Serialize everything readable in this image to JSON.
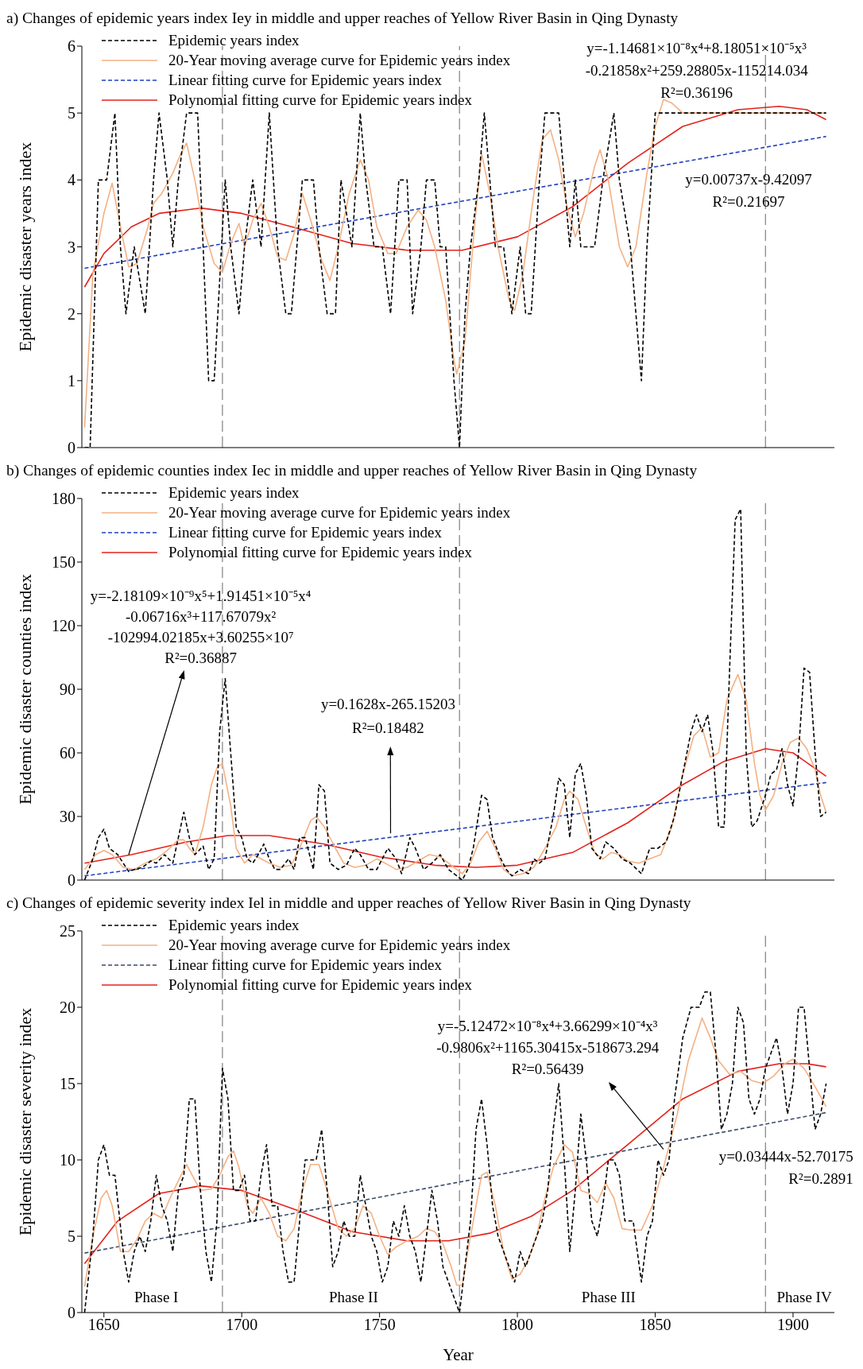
{
  "chart_data": [
    {
      "type": "line",
      "title": "a) Changes of epidemic years index Iey in middle and upper reaches of Yellow River Basin in Qing Dynasty",
      "ylabel": "Epidemic disaster years index",
      "xlim": [
        1642,
        1915
      ],
      "xticks": [
        1650,
        1700,
        1750,
        1800,
        1850,
        1900
      ],
      "ylim": [
        0,
        6
      ],
      "yticks": [
        0,
        1,
        2,
        3,
        4,
        5,
        6
      ],
      "tick_labels": "y",
      "legend": "top left",
      "ref_lines": [
        {
          "axis": "x",
          "value": 1693,
          "color": "#808080",
          "line_style": "dashed"
        },
        {
          "axis": "x",
          "value": 1779,
          "color": "#808080",
          "line_style": "dashed"
        },
        {
          "axis": "x",
          "value": 1890,
          "color": "#808080",
          "line_style": "dashed"
        }
      ],
      "annotations": [
        "y=-1.14681×10⁻⁸x⁴+8.18051×10⁻⁵x³\n-0.21858x²+259.28805x-115214.034\nR²=0.36196",
        "y=0.00737x-9.42097\nR²=0.21697"
      ],
      "series": [
        {
          "name": "Epidemic years index",
          "type": "line",
          "color": "#000000",
          "line_style": "dashed",
          "x": [
            1643,
            1645,
            1648,
            1651,
            1654,
            1656,
            1658,
            1661,
            1665,
            1668,
            1670,
            1673,
            1675,
            1677,
            1680,
            1684,
            1686,
            1688,
            1690,
            1694,
            1696,
            1699,
            1701,
            1704,
            1707,
            1710,
            1713,
            1716,
            1718,
            1722,
            1726,
            1728,
            1731,
            1734,
            1736,
            1740,
            1743,
            1745,
            1748,
            1751,
            1754,
            1757,
            1760,
            1762,
            1765,
            1767,
            1770,
            1772,
            1774,
            1777,
            1779,
            1781,
            1783,
            1786,
            1788,
            1790,
            1792,
            1795,
            1798,
            1801,
            1803,
            1805,
            1808,
            1810,
            1815,
            1819,
            1821,
            1823,
            1828,
            1831,
            1835,
            1837,
            1841,
            1845,
            1847,
            1850,
            1912
          ],
          "values": [
            0,
            0,
            4,
            4,
            5,
            3,
            2,
            3,
            2,
            4,
            5,
            4,
            3,
            4,
            5,
            5,
            3,
            1,
            1,
            4,
            3,
            2,
            3,
            4,
            3,
            5,
            3,
            2,
            2,
            4,
            4,
            3,
            2,
            2,
            4,
            3,
            5,
            4,
            3,
            3,
            2,
            4,
            4,
            2,
            3,
            4,
            4,
            3,
            3,
            1,
            0,
            2,
            3,
            4,
            5,
            4,
            3,
            3,
            2,
            3,
            2,
            2,
            4,
            5,
            5,
            3,
            4,
            3,
            3,
            4,
            5,
            4,
            3,
            1,
            3,
            5,
            5
          ]
        },
        {
          "name": "20-Year moving average curve for Epidemic years index",
          "type": "line",
          "color": "#f4b183",
          "line_style": "solid",
          "x": [
            1643,
            1646,
            1650,
            1653,
            1656,
            1659,
            1662,
            1666,
            1668,
            1671,
            1675,
            1678,
            1680,
            1683,
            1686,
            1690,
            1693,
            1696,
            1699,
            1701,
            1704,
            1707,
            1710,
            1713,
            1716,
            1719,
            1722,
            1725,
            1729,
            1732,
            1735,
            1739,
            1743,
            1746,
            1749,
            1753,
            1756,
            1760,
            1764,
            1767,
            1770,
            1774,
            1777,
            1778,
            1781,
            1784,
            1787,
            1790,
            1793,
            1797,
            1799,
            1802,
            1806,
            1809,
            1812,
            1815,
            1818,
            1821,
            1824,
            1828,
            1830,
            1833,
            1837,
            1840,
            1843,
            1847,
            1850,
            1853,
            1856,
            1860,
            1912
          ],
          "values": [
            0.3,
            2.6,
            3.5,
            3.95,
            3.3,
            2.7,
            2.75,
            3.3,
            3.65,
            3.8,
            4.1,
            4.4,
            4.55,
            4.0,
            3.3,
            2.75,
            2.62,
            3.05,
            3.35,
            3.0,
            3.4,
            3.65,
            3.3,
            2.85,
            2.8,
            3.2,
            3.8,
            3.4,
            2.8,
            2.5,
            3.0,
            3.8,
            4.3,
            4.0,
            3.3,
            2.9,
            2.9,
            3.3,
            3.55,
            3.4,
            3.0,
            2.2,
            1.3,
            1.1,
            1.6,
            3.1,
            4.4,
            3.8,
            3.0,
            2.2,
            2.05,
            2.6,
            3.8,
            4.6,
            4.75,
            4.3,
            3.6,
            3.15,
            3.5,
            4.2,
            4.45,
            4.0,
            3.0,
            2.7,
            3.0,
            4.1,
            4.8,
            5.2,
            5.15,
            5.0,
            5.0
          ]
        },
        {
          "name": "Linear fitting curve for Epidemic years index",
          "type": "line",
          "color": "#1f3fbf",
          "line_style": "dashed",
          "x": [
            1643,
            1912
          ],
          "values": [
            2.68,
            4.65
          ]
        },
        {
          "name": "Polynomial fitting curve for Epidemic years index",
          "type": "line",
          "color": "#e3231c",
          "line_style": "solid",
          "x": [
            1643,
            1650,
            1660,
            1670,
            1685,
            1700,
            1720,
            1740,
            1760,
            1780,
            1800,
            1820,
            1840,
            1860,
            1880,
            1895,
            1905,
            1912
          ],
          "values": [
            2.4,
            2.9,
            3.3,
            3.5,
            3.58,
            3.5,
            3.28,
            3.05,
            2.95,
            2.95,
            3.15,
            3.6,
            4.25,
            4.8,
            5.05,
            5.1,
            5.05,
            4.9
          ]
        }
      ]
    },
    {
      "type": "line",
      "title": "b) Changes of epidemic counties index Iec in middle and upper reaches of Yellow River Basin in Qing Dynasty",
      "ylabel": "Epidemic disaster counties index",
      "xlim": [
        1642,
        1915
      ],
      "xticks": [
        1650,
        1700,
        1750,
        1800,
        1850,
        1900
      ],
      "ylim": [
        0,
        180
      ],
      "yticks": [
        0,
        30,
        60,
        90,
        120,
        150,
        180
      ],
      "tick_labels": "y",
      "legend": "top left",
      "ref_lines": [
        {
          "axis": "x",
          "value": 1693,
          "color": "#808080",
          "line_style": "dashed"
        },
        {
          "axis": "x",
          "value": 1779,
          "color": "#808080",
          "line_style": "dashed"
        },
        {
          "axis": "x",
          "value": 1890,
          "color": "#808080",
          "line_style": "dashed"
        }
      ],
      "annotations": [
        {
          "text": "y=-2.18109×10⁻⁹x⁵+1.91451×10⁻⁵x⁴\n-0.06716x³+117.67079x²\n-102994.02185x+3.60255×10⁷\nR²=0.36887",
          "x": 1659,
          "y": 12
        },
        {
          "text": "y=0.1628x-265.15203\nR²=0.18482",
          "x": 1754,
          "y": 22
        }
      ],
      "series": [
        {
          "name": "Epidemic years index",
          "type": "line",
          "color": "#000000",
          "line_style": "dashed",
          "x": [
            1643,
            1646,
            1648,
            1650,
            1652,
            1655,
            1657,
            1659,
            1661,
            1664,
            1667,
            1669,
            1672,
            1675,
            1677,
            1679,
            1681,
            1683,
            1686,
            1688,
            1690,
            1692,
            1694,
            1696,
            1698,
            1700,
            1702,
            1704,
            1706,
            1708,
            1710,
            1712,
            1714,
            1717,
            1719,
            1721,
            1723,
            1726,
            1728,
            1730,
            1732,
            1735,
            1738,
            1741,
            1743,
            1746,
            1749,
            1753,
            1756,
            1758,
            1761,
            1763,
            1766,
            1769,
            1772,
            1775,
            1778,
            1780,
            1782,
            1784,
            1787,
            1789,
            1791,
            1794,
            1796,
            1798,
            1801,
            1804,
            1806,
            1808,
            1810,
            1813,
            1815,
            1817,
            1819,
            1821,
            1823,
            1825,
            1827,
            1830,
            1832,
            1835,
            1838,
            1841,
            1845,
            1848,
            1851,
            1854,
            1857,
            1860,
            1863,
            1865,
            1867,
            1869,
            1871,
            1873,
            1875,
            1877,
            1879,
            1881,
            1883,
            1885,
            1887,
            1890,
            1892,
            1894,
            1896,
            1898,
            1900,
            1902,
            1904,
            1906,
            1908,
            1910,
            1912
          ],
          "values": [
            0,
            10,
            20,
            24,
            15,
            12,
            8,
            4,
            5,
            6,
            9,
            8,
            12,
            8,
            20,
            32,
            20,
            12,
            16,
            5,
            10,
            70,
            95,
            60,
            25,
            20,
            10,
            8,
            12,
            17,
            10,
            5,
            5,
            10,
            5,
            20,
            20,
            5,
            45,
            42,
            8,
            5,
            7,
            15,
            12,
            5,
            5,
            15,
            10,
            3,
            20,
            15,
            5,
            8,
            12,
            5,
            2,
            0,
            5,
            15,
            40,
            38,
            20,
            10,
            5,
            2,
            5,
            3,
            10,
            8,
            10,
            30,
            48,
            45,
            20,
            50,
            55,
            40,
            15,
            10,
            18,
            15,
            10,
            8,
            3,
            15,
            15,
            18,
            30,
            50,
            70,
            78,
            70,
            78,
            60,
            25,
            25,
            100,
            170,
            175,
            60,
            25,
            28,
            40,
            50,
            52,
            62,
            45,
            35,
            60,
            100,
            98,
            60,
            30,
            32
          ]
        },
        {
          "name": "20-Year moving average curve for Epidemic years index",
          "type": "line",
          "color": "#f4b183",
          "line_style": "solid",
          "x": [
            1643,
            1647,
            1650,
            1653,
            1657,
            1661,
            1665,
            1669,
            1673,
            1677,
            1679,
            1681,
            1683,
            1686,
            1689,
            1691,
            1693,
            1696,
            1698,
            1701,
            1704,
            1707,
            1710,
            1714,
            1718,
            1721,
            1725,
            1727,
            1730,
            1734,
            1737,
            1741,
            1745,
            1749,
            1752,
            1756,
            1760,
            1764,
            1768,
            1772,
            1775,
            1778,
            1780,
            1783,
            1786,
            1789,
            1792,
            1795,
            1798,
            1802,
            1806,
            1810,
            1814,
            1817,
            1819,
            1822,
            1825,
            1828,
            1831,
            1834,
            1837,
            1840,
            1844,
            1848,
            1852,
            1856,
            1860,
            1864,
            1867,
            1870,
            1873,
            1876,
            1880,
            1883,
            1886,
            1888,
            1890,
            1893,
            1896,
            1899,
            1902,
            1905,
            1908,
            1910,
            1912
          ],
          "values": [
            5,
            12,
            14,
            12,
            6,
            5,
            8,
            10,
            14,
            19,
            19,
            15,
            12,
            25,
            45,
            53,
            55,
            35,
            15,
            8,
            12,
            10,
            8,
            6,
            7,
            15,
            28,
            30,
            25,
            15,
            8,
            6,
            7,
            10,
            8,
            5,
            6,
            9,
            12,
            11,
            8,
            5,
            3,
            8,
            18,
            23,
            15,
            5,
            2,
            3,
            6,
            15,
            25,
            38,
            42,
            38,
            25,
            13,
            10,
            13,
            12,
            9,
            8,
            10,
            12,
            25,
            50,
            68,
            72,
            58,
            60,
            85,
            97,
            85,
            55,
            40,
            33,
            40,
            55,
            65,
            67,
            62,
            52,
            40,
            32
          ]
        },
        {
          "name": "Linear fitting curve for Epidemic years index",
          "type": "line",
          "color": "#1f3fbf",
          "line_style": "dashed",
          "x": [
            1643,
            1912
          ],
          "values": [
            2,
            46
          ]
        },
        {
          "name": "Polynomial fitting curve for Epidemic years index",
          "type": "line",
          "color": "#e3231c",
          "line_style": "solid",
          "x": [
            1643,
            1660,
            1680,
            1695,
            1710,
            1730,
            1750,
            1770,
            1785,
            1800,
            1820,
            1840,
            1860,
            1875,
            1890,
            1900,
            1912
          ],
          "values": [
            8,
            12,
            18,
            21,
            21,
            17,
            11,
            7,
            6,
            7,
            13,
            27,
            45,
            56,
            62,
            60,
            49
          ]
        }
      ]
    },
    {
      "type": "line",
      "title": "c) Changes of epidemic severity index Iel in middle and upper reaches of Yellow River Basin in Qing Dynasty",
      "xlabel": "Year",
      "ylabel": "Epidemic disaster severity index",
      "xlim": [
        1642,
        1915
      ],
      "xticks": [
        1650,
        1700,
        1750,
        1800,
        1850,
        1900
      ],
      "ylim": [
        0,
        25
      ],
      "yticks": [
        0,
        5,
        10,
        15,
        20,
        25
      ],
      "legend": "top left",
      "ref_lines": [
        {
          "axis": "x",
          "value": 1693,
          "color": "#808080",
          "line_style": "dashed"
        },
        {
          "axis": "x",
          "value": 1779,
          "color": "#808080",
          "line_style": "dashed"
        },
        {
          "axis": "x",
          "value": 1890,
          "color": "#808080",
          "line_style": "dashed"
        }
      ],
      "annotations": [
        {
          "text": "y=-5.12472×10⁻⁸x⁴+3.66299×10⁻⁴x³\n-0.9806x²+1165.30415x-518673.294\nR²=0.56439",
          "x": 1853,
          "y": 10.7
        },
        "y=0.03444x-52.70175\nR²=0.2891",
        "Phase I",
        "Phase II",
        "Phase III",
        "Phase IV"
      ],
      "series": [
        {
          "name": "Epidemic years index",
          "type": "line",
          "color": "#000000",
          "line_style": "dashed",
          "x": [
            1643,
            1646,
            1648,
            1650,
            1652,
            1654,
            1657,
            1659,
            1661,
            1663,
            1665,
            1667,
            1669,
            1671,
            1673,
            1675,
            1677,
            1679,
            1681,
            1683,
            1685,
            1687,
            1689,
            1691,
            1693,
            1695,
            1697,
            1699,
            1701,
            1703,
            1705,
            1707,
            1709,
            1711,
            1713,
            1715,
            1717,
            1719,
            1721,
            1723,
            1725,
            1727,
            1729,
            1731,
            1733,
            1735,
            1737,
            1739,
            1741,
            1743,
            1745,
            1747,
            1749,
            1751,
            1753,
            1755,
            1757,
            1759,
            1761,
            1763,
            1765,
            1767,
            1769,
            1771,
            1773,
            1775,
            1777,
            1779,
            1781,
            1783,
            1785,
            1787,
            1789,
            1791,
            1793,
            1795,
            1797,
            1799,
            1801,
            1803,
            1805,
            1807,
            1809,
            1811,
            1813,
            1815,
            1817,
            1819,
            1821,
            1823,
            1825,
            1827,
            1829,
            1831,
            1833,
            1835,
            1837,
            1839,
            1842,
            1845,
            1847,
            1849,
            1851,
            1853,
            1855,
            1857,
            1860,
            1863,
            1866,
            1868,
            1870,
            1872,
            1874,
            1876,
            1878,
            1880,
            1882,
            1884,
            1886,
            1888,
            1890,
            1892,
            1894,
            1896,
            1898,
            1900,
            1902,
            1904,
            1906,
            1908,
            1910,
            1912
          ],
          "values": [
            0,
            5,
            10,
            11,
            9,
            9,
            4,
            2,
            4,
            5,
            4,
            6,
            9,
            7,
            6,
            4,
            8,
            9,
            14,
            14,
            8,
            4,
            2,
            6,
            16,
            14,
            8,
            8,
            9,
            6,
            6,
            9,
            11,
            7,
            7,
            4,
            2,
            2,
            6,
            10,
            10,
            10,
            12,
            8,
            3,
            4,
            6,
            5,
            5,
            9,
            7,
            5,
            4,
            2,
            3,
            6,
            5,
            7,
            5,
            4,
            2,
            5,
            8,
            6,
            3,
            2,
            1,
            0,
            3,
            6,
            12,
            14,
            11,
            7,
            5,
            4,
            3,
            2,
            4,
            3,
            4,
            5,
            6,
            8,
            12,
            15,
            10,
            4,
            8,
            13,
            10,
            6,
            5,
            7,
            10,
            10,
            9,
            6,
            6,
            2,
            5,
            6,
            10,
            9,
            10,
            14,
            18,
            20,
            20,
            21,
            21,
            17,
            12,
            13,
            15,
            20,
            19,
            14,
            13,
            14,
            16,
            17,
            18,
            16,
            13,
            15,
            20,
            20,
            16,
            12,
            13,
            15
          ]
        },
        {
          "name": "20-Year moving average curve for Epidemic years index",
          "type": "line",
          "color": "#f4b183",
          "line_style": "solid",
          "x": [
            1643,
            1646,
            1649,
            1651,
            1653,
            1656,
            1659,
            1662,
            1665,
            1668,
            1671,
            1674,
            1678,
            1680,
            1682,
            1685,
            1689,
            1692,
            1695,
            1697,
            1699,
            1702,
            1704,
            1707,
            1710,
            1713,
            1716,
            1719,
            1722,
            1725,
            1728,
            1731,
            1735,
            1738,
            1741,
            1744,
            1747,
            1750,
            1753,
            1756,
            1760,
            1764,
            1767,
            1770,
            1773,
            1776,
            1778,
            1780,
            1782,
            1785,
            1787,
            1789,
            1792,
            1795,
            1798,
            1801,
            1804,
            1807,
            1810,
            1813,
            1817,
            1820,
            1823,
            1826,
            1829,
            1832,
            1835,
            1838,
            1841,
            1845,
            1849,
            1853,
            1858,
            1862,
            1867,
            1870,
            1873,
            1877,
            1881,
            1885,
            1889,
            1893,
            1897,
            1900,
            1904,
            1908,
            1912
          ],
          "values": [
            1.7,
            5,
            7.5,
            8,
            7,
            4,
            4,
            4.8,
            6,
            6.5,
            6.2,
            7.5,
            9,
            9.7,
            9,
            8,
            8.1,
            9,
            10.2,
            10.6,
            9.5,
            7,
            6.5,
            7.5,
            6.5,
            5,
            4.7,
            5.5,
            8,
            9.7,
            9.7,
            8,
            5.5,
            5,
            5.5,
            7,
            6.5,
            5,
            3.8,
            4.3,
            4.7,
            5,
            5.5,
            5.3,
            4.5,
            3,
            1.8,
            1.8,
            4,
            7,
            9,
            9.2,
            7,
            4,
            2.2,
            2.5,
            3.5,
            5,
            7.5,
            9.5,
            11,
            10.5,
            8,
            7.8,
            7.2,
            8.5,
            7.5,
            5.5,
            5.4,
            5.4,
            7,
            9.5,
            13,
            16.5,
            19.3,
            18,
            16.5,
            15.6,
            15.8,
            15.2,
            15,
            15.5,
            16.3,
            16.6,
            16,
            14.8,
            13.5
          ]
        },
        {
          "name": "Linear fitting curve for Epidemic years index",
          "type": "line",
          "color": "#3b4a6b",
          "line_style": "dashed",
          "x": [
            1643,
            1912
          ],
          "values": [
            3.9,
            13.1
          ]
        },
        {
          "name": "Polynomial fitting curve for Epidemic years index",
          "type": "line",
          "color": "#e3231c",
          "line_style": "solid",
          "x": [
            1643,
            1655,
            1670,
            1685,
            1700,
            1720,
            1740,
            1760,
            1775,
            1790,
            1805,
            1820,
            1840,
            1860,
            1880,
            1895,
            1905,
            1912
          ],
          "values": [
            3.2,
            6,
            7.8,
            8.3,
            8,
            6.7,
            5.3,
            4.7,
            4.7,
            5.2,
            6.3,
            8,
            11,
            14,
            15.8,
            16.3,
            16.3,
            16.1
          ]
        }
      ]
    }
  ]
}
